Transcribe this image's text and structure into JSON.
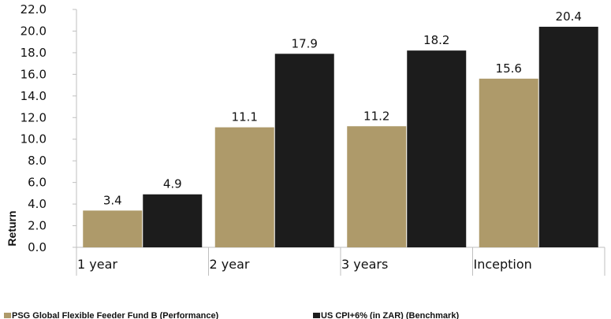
{
  "chart_data": {
    "type": "bar",
    "ylabel": "Return",
    "ylim": [
      0,
      22
    ],
    "ytick_step": 2,
    "categories": [
      "1 year",
      "2 year",
      "3 years",
      "Inception"
    ],
    "series": [
      {
        "name": "PSG Global Flexible Feeder Fund B (Performance)",
        "color": "#AE9A6A",
        "values": [
          3.4,
          11.1,
          11.2,
          15.6
        ]
      },
      {
        "name": "US CPI+6% (in ZAR) (Benchmark)",
        "color": "#1C1C1C",
        "values": [
          4.9,
          17.9,
          18.2,
          20.4
        ]
      }
    ],
    "legend_position": "bottom",
    "grid": false
  }
}
